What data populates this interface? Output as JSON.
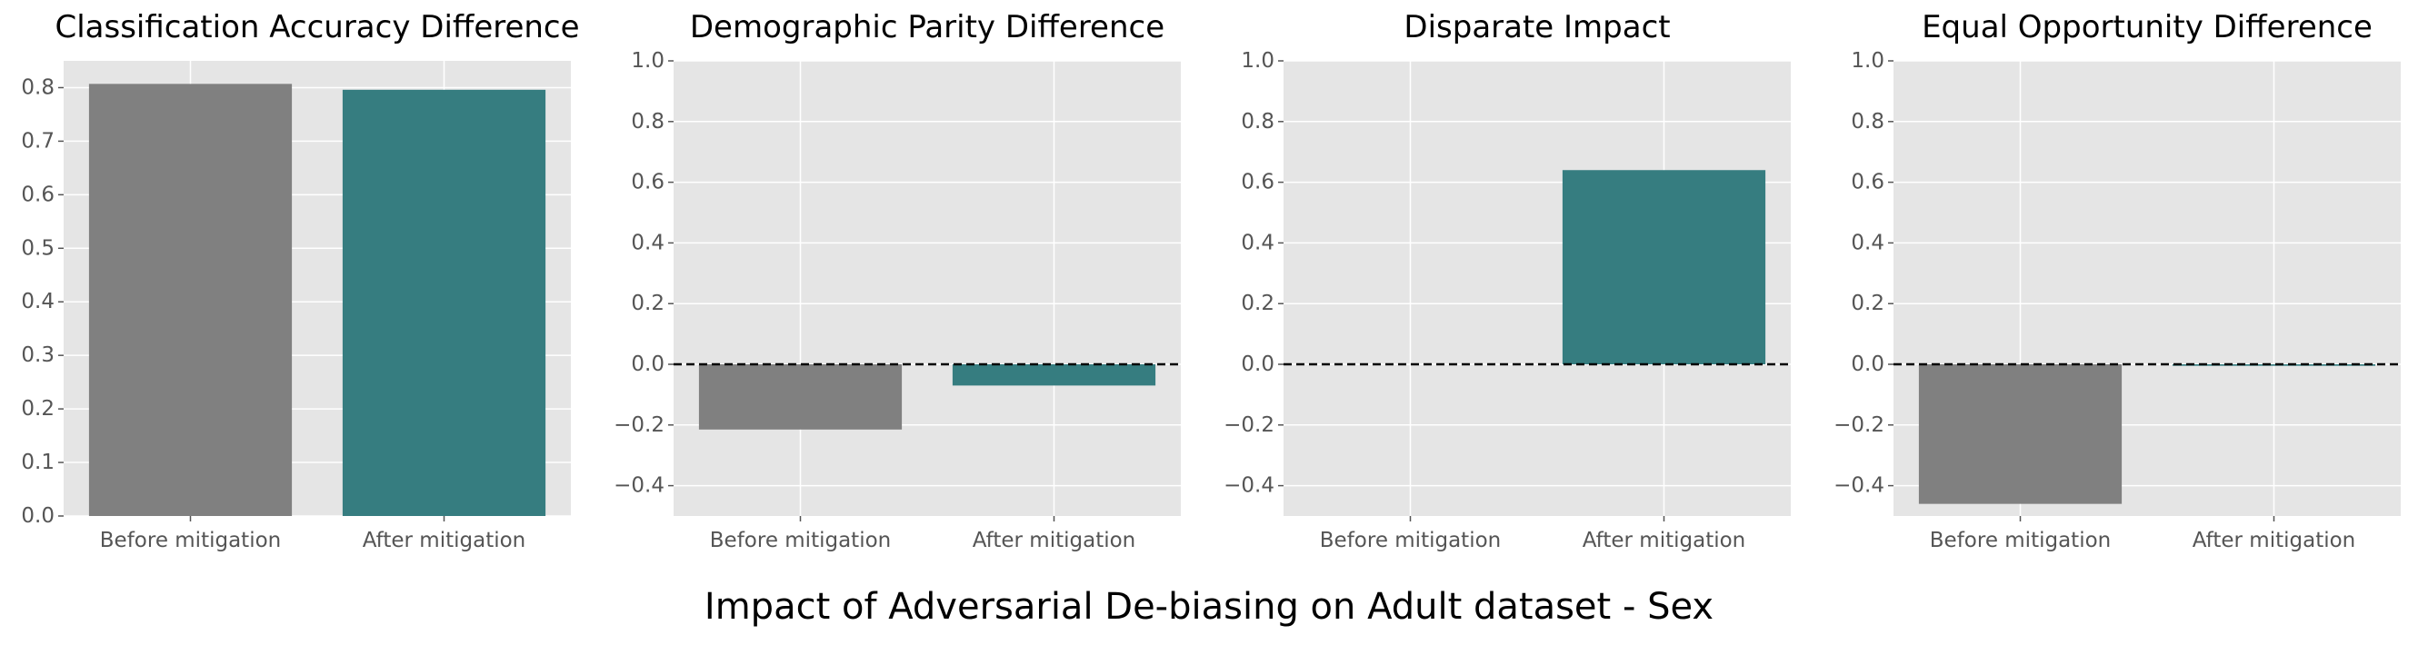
{
  "suptitle": "Impact of Adversarial De-biasing on Adult dataset - Sex",
  "colors": {
    "before": "#808080",
    "after": "#367d80",
    "axes_bg": "#e5e5e5",
    "grid": "#ffffff",
    "tick_text": "#555555",
    "baseline": "#000000"
  },
  "chart_data": [
    {
      "type": "bar",
      "title": "Classification Accuracy Difference",
      "categories": [
        "Before mitigation",
        "After mitigation"
      ],
      "values": [
        0.807,
        0.796
      ],
      "ylim": [
        0,
        0.85
      ],
      "yticks": [
        0.0,
        0.1,
        0.2,
        0.3,
        0.4,
        0.5,
        0.6,
        0.7,
        0.8
      ],
      "ytick_labels": [
        "0.0",
        "0.1",
        "0.2",
        "0.3",
        "0.4",
        "0.5",
        "0.6",
        "0.7",
        "0.8"
      ],
      "baseline_dashed": false,
      "grid": true
    },
    {
      "type": "bar",
      "title": "Demographic Parity Difference",
      "categories": [
        "Before mitigation",
        "After mitigation"
      ],
      "values": [
        -0.215,
        -0.07
      ],
      "ylim": [
        -0.5,
        1.0
      ],
      "yticks": [
        -0.4,
        -0.2,
        0.0,
        0.2,
        0.4,
        0.6,
        0.8,
        1.0
      ],
      "ytick_labels": [
        "−0.4",
        "−0.2",
        "0.0",
        "0.2",
        "0.4",
        "0.6",
        "0.8",
        "1.0"
      ],
      "baseline_dashed": true,
      "grid": true
    },
    {
      "type": "bar",
      "title": "Disparate Impact",
      "categories": [
        "Before mitigation",
        "After mitigation"
      ],
      "values": [
        0.0,
        0.64
      ],
      "ylim": [
        -0.5,
        1.0
      ],
      "yticks": [
        -0.4,
        -0.2,
        0.0,
        0.2,
        0.4,
        0.6,
        0.8,
        1.0
      ],
      "ytick_labels": [
        "−0.4",
        "−0.2",
        "0.0",
        "0.2",
        "0.4",
        "0.6",
        "0.8",
        "1.0"
      ],
      "baseline_dashed": true,
      "grid": true
    },
    {
      "type": "bar",
      "title": "Equal Opportunity Difference",
      "categories": [
        "Before mitigation",
        "After mitigation"
      ],
      "values": [
        -0.46,
        -0.005
      ],
      "ylim": [
        -0.5,
        1.0
      ],
      "yticks": [
        -0.4,
        -0.2,
        0.0,
        0.2,
        0.4,
        0.6,
        0.8,
        1.0
      ],
      "ytick_labels": [
        "−0.4",
        "−0.2",
        "0.0",
        "0.2",
        "0.4",
        "0.6",
        "0.8",
        "1.0"
      ],
      "baseline_dashed": true,
      "grid": true
    }
  ]
}
